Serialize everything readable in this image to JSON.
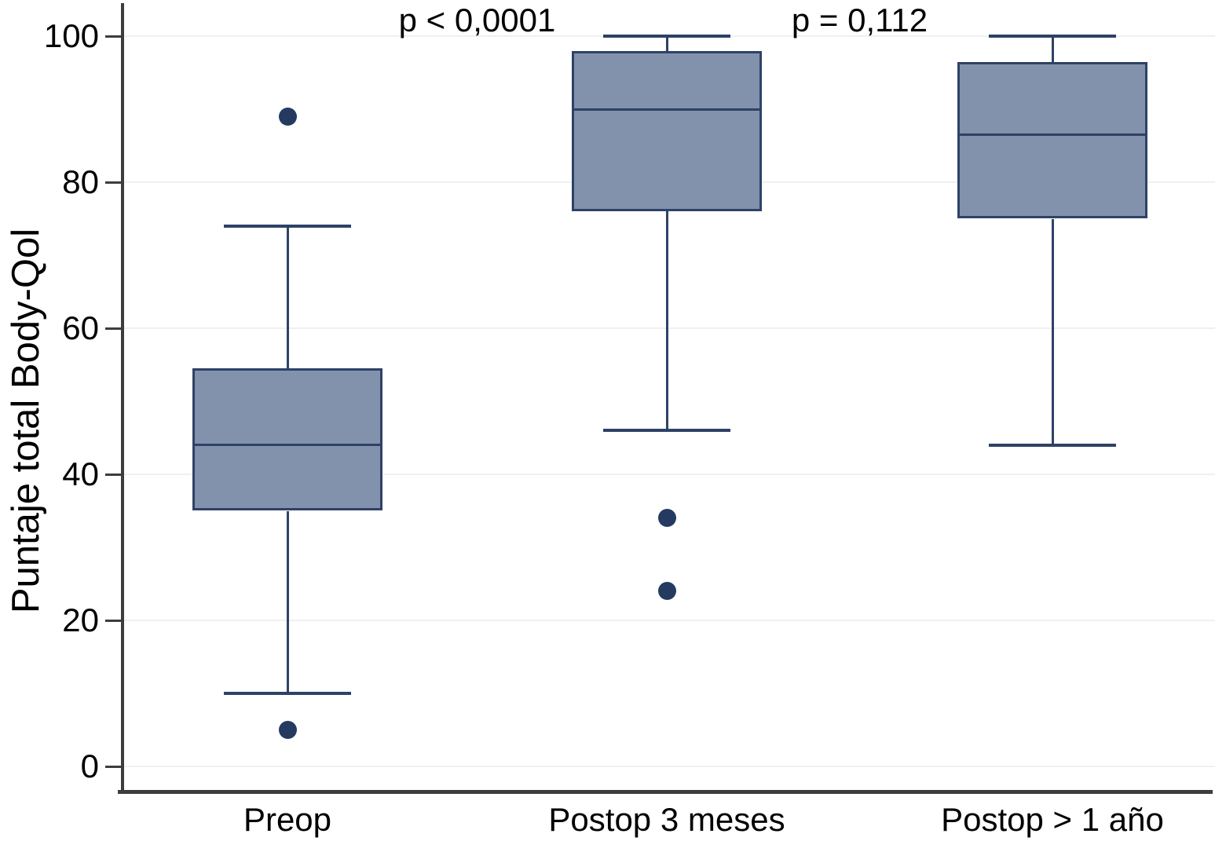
{
  "chart_data": {
    "type": "boxplot",
    "title": "",
    "xlabel": "",
    "ylabel": "Puntaje total Body-Qol",
    "ylim": [
      0,
      100
    ],
    "yticks": [
      0,
      20,
      40,
      60,
      80,
      100
    ],
    "grid": "horizontal",
    "legend": "none",
    "categories": [
      "Preop",
      "Postop 3 meses",
      "Postop > 1 año"
    ],
    "series": [
      {
        "name": "Preop",
        "whisker_low": 10,
        "q1": 35,
        "median": 44,
        "q3": 54.5,
        "whisker_high": 74,
        "outliers": [
          89,
          5
        ]
      },
      {
        "name": "Postop 3 meses",
        "whisker_low": 46,
        "q1": 76,
        "median": 90,
        "q3": 98,
        "whisker_high": 100,
        "outliers": [
          34,
          24
        ]
      },
      {
        "name": "Postop > 1 año",
        "whisker_low": 44,
        "q1": 75,
        "median": 86.5,
        "q3": 96.5,
        "whisker_high": 100,
        "outliers": []
      }
    ],
    "annotations": [
      {
        "text": "p < 0,0001",
        "between_categories": [
          0,
          1
        ]
      },
      {
        "text": "p = 0,112",
        "between_categories": [
          1,
          2
        ]
      }
    ],
    "colors": {
      "box_fill": "#8292ad",
      "box_border": "#2e4266",
      "median": "#2e4266",
      "outlier": "#243a60",
      "gridline": "#eef1f1",
      "axis": "#3d3d3d",
      "text": "#000000"
    }
  }
}
